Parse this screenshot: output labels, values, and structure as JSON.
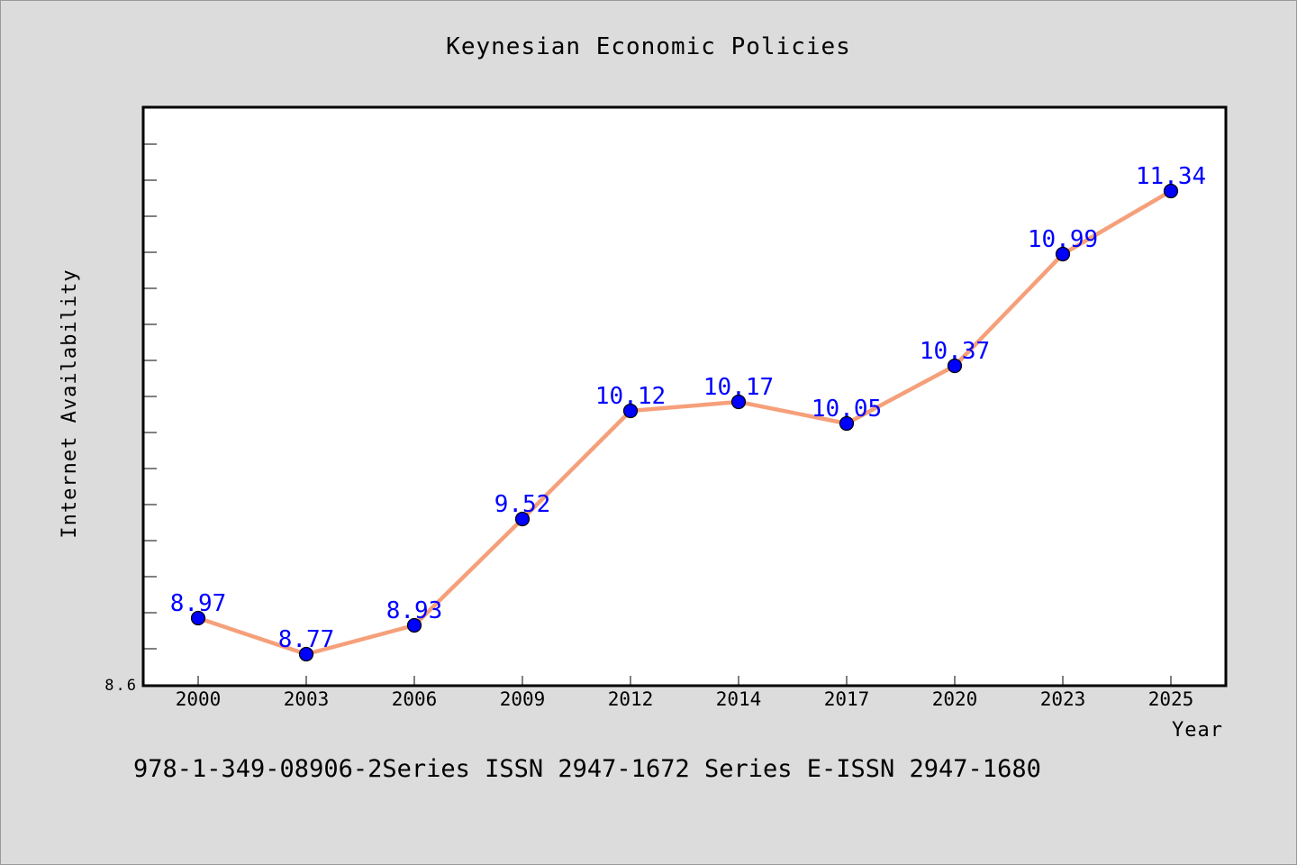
{
  "colors": {
    "background": "#dcdcdc",
    "plot_background": "#ffffff",
    "line": "#f5a07a",
    "marker": "#0000ff",
    "data_label": "#0000ff"
  },
  "footer_text": "978-1-349-08906-2Series ISSN 2947-1672 Series E-ISSN 2947-1680",
  "chart_data": {
    "type": "line",
    "title": "Keynesian Economic Policies",
    "xlabel": "Year",
    "ylabel": "Internet Availability",
    "categories": [
      "2000",
      "2003",
      "2006",
      "2009",
      "2012",
      "2014",
      "2017",
      "2020",
      "2023",
      "2025"
    ],
    "series": [
      {
        "values": [
          8.97,
          8.77,
          8.93,
          9.52,
          10.12,
          10.17,
          10.05,
          10.37,
          10.99,
          11.34
        ]
      }
    ],
    "data_labels": [
      "8.97",
      "8.77",
      "8.93",
      "9.52",
      "10.12",
      "10.17",
      "10.05",
      "10.37",
      "10.99",
      "11.34"
    ],
    "y_tick_labels": [
      {
        "value": 8.6,
        "label": "8.6"
      }
    ],
    "ylim": [
      8.6,
      11.8
    ],
    "y_minor_step": 0.2,
    "grid": false,
    "legend": "none",
    "markers": true
  }
}
